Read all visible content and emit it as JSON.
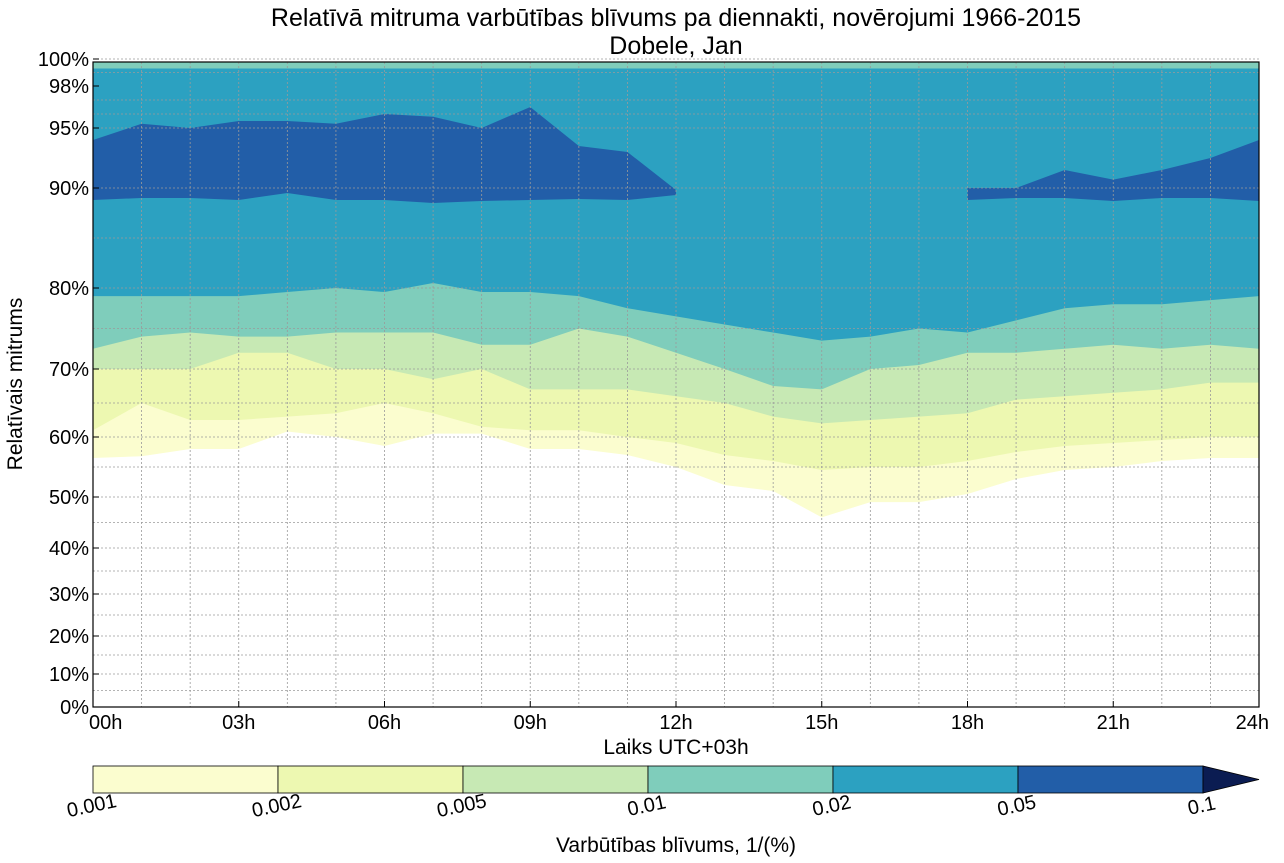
{
  "chart_data": {
    "type": "filled-contour",
    "title": "Relatīvā mitruma varbūtības blīvums pa diennakti, novērojumi 1966-2015",
    "subtitle": "Dobele, Jan",
    "xlabel": "Laiks UTC+03h",
    "ylabel": "Relatīvais mitrums",
    "x_ticks": [
      "00h",
      "03h",
      "06h",
      "09h",
      "12h",
      "15h",
      "18h",
      "21h",
      "24h"
    ],
    "x_hours": [
      0,
      3,
      6,
      9,
      12,
      15,
      18,
      21,
      24
    ],
    "xlim": [
      0,
      24
    ],
    "y_ticks": [
      "0%",
      "10%",
      "20%",
      "30%",
      "40%",
      "50%",
      "60%",
      "70%",
      "80%",
      "90%",
      "95%",
      "98%",
      "100%"
    ],
    "y_values": [
      0,
      10,
      20,
      30,
      40,
      50,
      60,
      70,
      80,
      90,
      95,
      98,
      100
    ],
    "ylim": [
      0,
      100
    ],
    "grid": true,
    "colorbar": {
      "label": "Varbūtības blīvums, 1/(%)",
      "levels": [
        "0.001",
        "0.002",
        "0.005",
        "0.01",
        "0.02",
        "0.05",
        "0.1"
      ],
      "colors": [
        "#fbfdcf",
        "#edf8b1",
        "#c7e9b4",
        "#7fcdbb",
        "#2ca1c1",
        "#225ea8",
        "#0b1c52"
      ],
      "extend": "max"
    },
    "contour_bands": [
      {
        "level": "0.001",
        "lower": [
          56.5,
          56.8,
          58,
          58,
          60.8,
          60,
          58.5,
          60.5,
          60.5,
          58,
          58,
          57,
          55,
          52,
          51,
          46,
          49,
          49,
          50.5,
          53,
          54.5,
          55,
          56,
          56.5,
          56.5
        ],
        "upper": [
          100,
          100,
          100,
          100,
          100,
          100,
          100,
          100,
          100,
          100,
          100,
          100,
          100,
          100,
          100,
          100,
          100,
          100,
          100,
          100,
          100,
          100,
          100,
          100,
          100
        ]
      },
      {
        "level": "0.002",
        "lower": [
          61,
          65,
          62.5,
          62.5,
          63,
          63.5,
          65,
          63.5,
          61.5,
          61,
          61,
          60,
          59,
          57,
          56,
          54.5,
          55,
          55,
          56,
          57.5,
          58.5,
          59,
          59.5,
          60,
          60
        ],
        "upper": [
          100,
          100,
          100,
          100,
          100,
          100,
          100,
          100,
          100,
          100,
          100,
          100,
          100,
          100,
          100,
          100,
          100,
          100,
          100,
          100,
          100,
          100,
          100,
          100,
          100
        ]
      },
      {
        "level": "0.005",
        "lower": [
          70,
          70,
          70,
          72,
          72,
          70,
          70,
          68.5,
          70,
          67,
          67,
          67,
          66,
          65,
          63,
          62,
          62.5,
          63,
          63.5,
          65.5,
          66,
          66.5,
          67,
          68,
          68
        ],
        "upper": [
          100,
          100,
          100,
          100,
          100,
          100,
          100,
          100,
          100,
          100,
          100,
          100,
          100,
          100,
          100,
          100,
          100,
          100,
          100,
          100,
          100,
          100,
          100,
          100,
          100
        ]
      },
      {
        "level": "0.01",
        "lower": [
          72.5,
          74,
          74.5,
          74,
          74,
          74.5,
          74.5,
          74.5,
          73,
          73,
          75,
          74,
          72,
          70,
          67.5,
          67,
          70,
          70.5,
          72,
          72,
          72.5,
          73,
          72.5,
          73,
          72.5
        ],
        "upper": [
          100,
          100,
          100,
          100,
          100,
          100,
          100,
          100,
          100,
          100,
          100,
          100,
          100,
          100,
          100,
          100,
          100,
          100,
          100,
          100,
          100,
          100,
          100,
          100,
          100
        ]
      },
      {
        "level": "0.02",
        "lower": [
          79,
          79,
          79,
          79,
          79.5,
          80,
          79.5,
          80.5,
          79.5,
          79.5,
          79,
          77.5,
          76.5,
          75.5,
          74.5,
          73.5,
          74,
          75,
          74.5,
          76,
          77.5,
          78,
          78,
          78.5,
          79
        ],
        "upper": [
          99.3,
          99.3,
          99.3,
          99.3,
          99.3,
          99.3,
          99.3,
          99.3,
          99.3,
          99.3,
          99.3,
          99.3,
          99.3,
          99.3,
          99.3,
          99.3,
          99.3,
          99.3,
          99.3,
          99.3,
          99.3,
          99.3,
          99.3,
          99.3,
          99.3
        ]
      },
      {
        "level": "0.05",
        "lower": [
          88.8,
          89,
          89,
          88.8,
          89.5,
          88.8,
          88.8,
          88.5,
          88.7,
          88.8,
          88.9,
          88.8,
          89.3,
          null,
          null,
          null,
          null,
          null,
          88.8,
          89,
          89,
          88.7,
          89,
          89,
          88.7
        ],
        "upper": [
          94,
          95.3,
          95,
          95.5,
          95.5,
          95.3,
          96,
          95.8,
          95,
          96.5,
          93.5,
          93,
          89.8,
          null,
          null,
          null,
          null,
          null,
          90,
          90,
          91.5,
          90.7,
          91.5,
          92.5,
          94
        ]
      }
    ]
  }
}
